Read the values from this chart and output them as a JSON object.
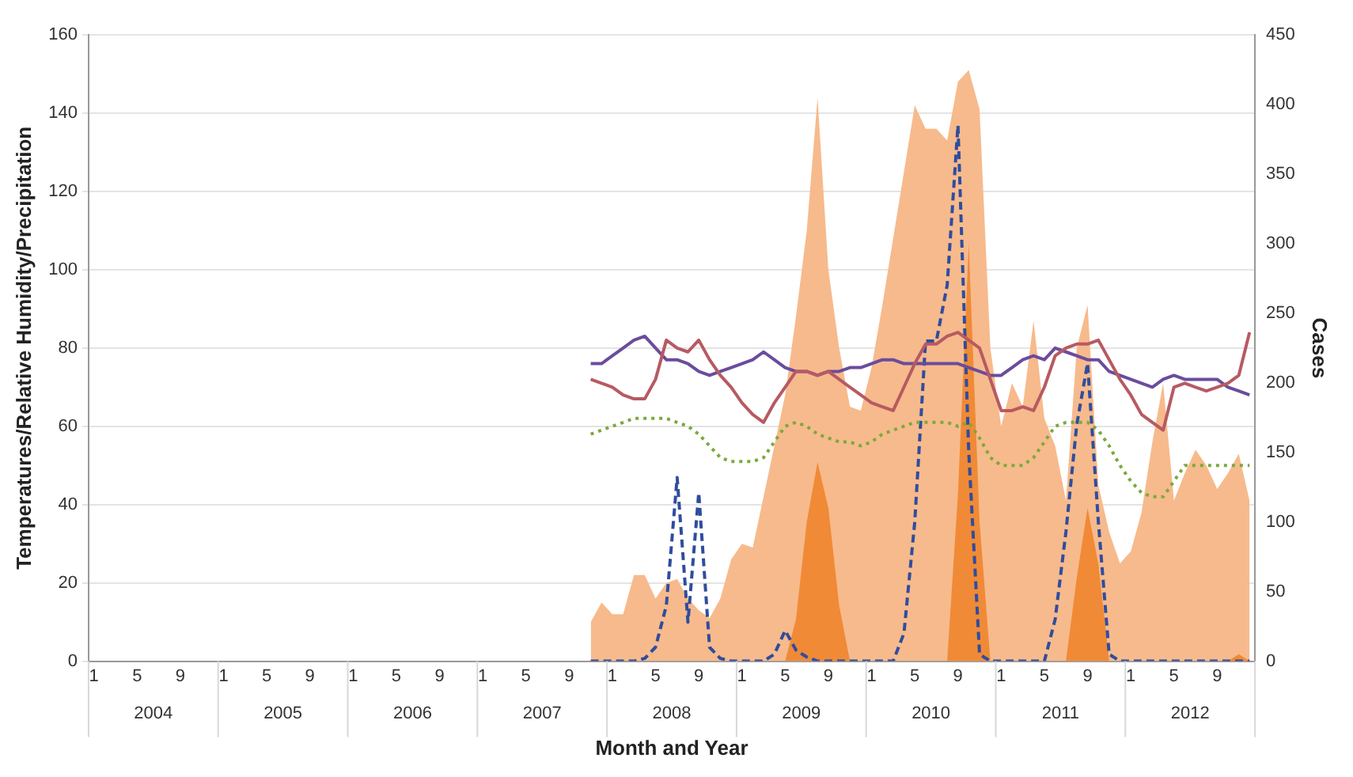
{
  "chart_data": {
    "type": "line",
    "xlabel": "Month and Year",
    "ylabel": "Temperatures/Relative Humidity/Precipitation",
    "y2label": "Cases",
    "categories": [
      "1",
      null,
      null,
      null,
      "5",
      null,
      null,
      null,
      "9",
      null,
      null,
      null,
      "1",
      null,
      null,
      null,
      "5",
      null,
      null,
      null,
      "9",
      null,
      null,
      null,
      "1",
      null,
      null,
      null,
      "5",
      null,
      null,
      null,
      "9",
      null,
      null,
      null,
      "1",
      null,
      null,
      null,
      "5",
      null,
      null,
      null,
      "9",
      null,
      null,
      null,
      "1",
      null,
      null,
      null,
      "5",
      null,
      null,
      null,
      "9",
      null,
      null,
      null,
      "1",
      null,
      null,
      null,
      "5",
      null,
      null,
      null,
      "9",
      null,
      null,
      null,
      "1",
      null,
      null,
      null,
      "5",
      null,
      null,
      null,
      "9",
      null,
      null,
      null,
      "1",
      null,
      null,
      null,
      "5",
      null,
      null,
      null,
      "9",
      null,
      null,
      null,
      "1",
      null,
      null,
      null,
      "5",
      null,
      null,
      null,
      "9",
      null,
      null,
      null
    ],
    "annotations": [
      "2004",
      "2005",
      "2006",
      "2007",
      "2008",
      "2009",
      "2010",
      "2011",
      "2012"
    ],
    "series": [
      {
        "type": "area",
        "color": "#f7ba8c",
        "values": [
          null,
          null,
          null,
          null,
          null,
          null,
          null,
          null,
          null,
          null,
          null,
          null,
          null,
          null,
          null,
          null,
          null,
          null,
          null,
          null,
          null,
          null,
          null,
          null,
          null,
          null,
          null,
          null,
          null,
          null,
          null,
          null,
          null,
          null,
          null,
          null,
          null,
          null,
          null,
          null,
          null,
          null,
          null,
          null,
          null,
          null,
          10,
          15,
          12,
          12,
          22,
          22,
          16,
          20,
          21,
          16,
          13,
          11,
          16,
          26,
          30,
          29,
          42,
          55,
          68,
          88,
          110,
          144,
          100,
          80,
          65,
          64,
          75,
          91,
          108,
          125,
          142,
          136,
          136,
          133,
          148,
          151,
          141,
          80,
          60,
          71,
          65,
          87,
          62,
          55,
          41,
          80,
          91,
          45,
          33,
          25,
          28,
          38,
          56,
          71,
          41,
          48,
          54,
          50,
          44,
          48,
          53,
          41
        ]
      },
      {
        "type": "area",
        "axis": "y2",
        "color": "#f08a36",
        "values": [
          null,
          null,
          null,
          null,
          null,
          null,
          null,
          null,
          null,
          null,
          null,
          null,
          null,
          null,
          null,
          null,
          null,
          null,
          null,
          null,
          null,
          null,
          null,
          null,
          null,
          null,
          null,
          null,
          null,
          null,
          null,
          null,
          null,
          null,
          null,
          null,
          null,
          null,
          null,
          null,
          null,
          null,
          null,
          null,
          null,
          null,
          0,
          0,
          0,
          0,
          0,
          0,
          0,
          0,
          0,
          0,
          0,
          0,
          0,
          0,
          0,
          0,
          0,
          0,
          0,
          30,
          100,
          143,
          110,
          40,
          0,
          0,
          0,
          0,
          0,
          0,
          0,
          0,
          0,
          0,
          120,
          300,
          100,
          0,
          0,
          0,
          0,
          0,
          0,
          0,
          0,
          60,
          110,
          70,
          0,
          0,
          0,
          0,
          0,
          0,
          0,
          0,
          0,
          0,
          0,
          0,
          5,
          0
        ]
      },
      {
        "axis": "y2",
        "color": "#2f4d9e",
        "line_style": "dashed",
        "values": [
          null,
          null,
          null,
          null,
          null,
          null,
          null,
          null,
          null,
          null,
          null,
          null,
          null,
          null,
          null,
          null,
          null,
          null,
          null,
          null,
          null,
          null,
          null,
          null,
          null,
          null,
          null,
          null,
          null,
          null,
          null,
          null,
          null,
          null,
          null,
          null,
          null,
          null,
          null,
          null,
          null,
          null,
          null,
          null,
          null,
          null,
          0,
          0,
          0,
          0,
          0,
          2,
          10,
          40,
          132,
          28,
          121,
          10,
          2,
          0,
          0,
          0,
          0,
          5,
          22,
          8,
          3,
          0,
          0,
          0,
          0,
          0,
          0,
          0,
          0,
          20,
          100,
          230,
          230,
          270,
          385,
          150,
          5,
          0,
          0,
          0,
          0,
          0,
          0,
          30,
          93,
          170,
          214,
          100,
          5,
          0,
          0,
          0,
          0,
          0,
          0,
          0,
          0,
          0,
          0,
          0,
          0,
          0
        ]
      },
      {
        "color": "#6a4c9c",
        "line_style": "solid",
        "values": [
          null,
          null,
          null,
          null,
          null,
          null,
          null,
          null,
          null,
          null,
          null,
          null,
          null,
          null,
          null,
          null,
          null,
          null,
          null,
          null,
          null,
          null,
          null,
          null,
          null,
          null,
          null,
          null,
          null,
          null,
          null,
          null,
          null,
          null,
          null,
          null,
          null,
          null,
          null,
          null,
          null,
          null,
          null,
          null,
          null,
          null,
          76,
          76,
          78,
          80,
          82,
          83,
          80,
          77,
          77,
          76,
          74,
          73,
          74,
          75,
          76,
          77,
          79,
          77,
          75,
          74,
          74,
          73,
          74,
          74,
          75,
          75,
          76,
          77,
          77,
          76,
          76,
          76,
          76,
          76,
          76,
          75,
          74,
          73,
          73,
          75,
          77,
          78,
          77,
          80,
          79,
          78,
          77,
          77,
          74,
          73,
          72,
          71,
          70,
          72,
          73,
          72,
          72,
          72,
          72,
          70,
          69,
          68
        ]
      },
      {
        "color": "#b75a62",
        "line_style": "solid",
        "values": [
          null,
          null,
          null,
          null,
          null,
          null,
          null,
          null,
          null,
          null,
          null,
          null,
          null,
          null,
          null,
          null,
          null,
          null,
          null,
          null,
          null,
          null,
          null,
          null,
          null,
          null,
          null,
          null,
          null,
          null,
          null,
          null,
          null,
          null,
          null,
          null,
          null,
          null,
          null,
          null,
          null,
          null,
          null,
          null,
          null,
          null,
          72,
          71,
          70,
          68,
          67,
          67,
          72,
          82,
          80,
          79,
          82,
          77,
          73,
          70,
          66,
          63,
          61,
          66,
          70,
          74,
          74,
          73,
          74,
          72,
          70,
          68,
          66,
          65,
          64,
          70,
          76,
          81,
          81,
          83,
          84,
          82,
          80,
          72,
          64,
          64,
          65,
          64,
          70,
          78,
          80,
          81,
          81,
          82,
          77,
          72,
          68,
          63,
          61,
          59,
          70,
          71,
          70,
          69,
          70,
          71,
          73,
          84
        ]
      },
      {
        "color": "#7aaa3c",
        "line_style": "dotted",
        "values": [
          null,
          null,
          null,
          null,
          null,
          null,
          null,
          null,
          null,
          null,
          null,
          null,
          null,
          null,
          null,
          null,
          null,
          null,
          null,
          null,
          null,
          null,
          null,
          null,
          null,
          null,
          null,
          null,
          null,
          null,
          null,
          null,
          null,
          null,
          null,
          null,
          null,
          null,
          null,
          null,
          null,
          null,
          null,
          null,
          null,
          null,
          58,
          59,
          60,
          61,
          62,
          62,
          62,
          62,
          61,
          60,
          58,
          55,
          52,
          51,
          51,
          51,
          52,
          56,
          60,
          61,
          60,
          58,
          57,
          56,
          56,
          55,
          56,
          58,
          59,
          60,
          61,
          61,
          61,
          61,
          60,
          61,
          57,
          52,
          50,
          50,
          50,
          52,
          56,
          60,
          61,
          61,
          61,
          59,
          55,
          50,
          46,
          43,
          42,
          42,
          46,
          50,
          50,
          50,
          50,
          50,
          50,
          50
        ]
      }
    ],
    "ylim": [
      0,
      160
    ],
    "yticks": [
      0,
      20,
      40,
      60,
      80,
      100,
      120,
      140,
      160
    ],
    "y2lim": [
      0,
      450
    ],
    "y2ticks": [
      0,
      50,
      100,
      150,
      200,
      250,
      300,
      350,
      400,
      450
    ],
    "grid": "y",
    "marker": "none"
  }
}
